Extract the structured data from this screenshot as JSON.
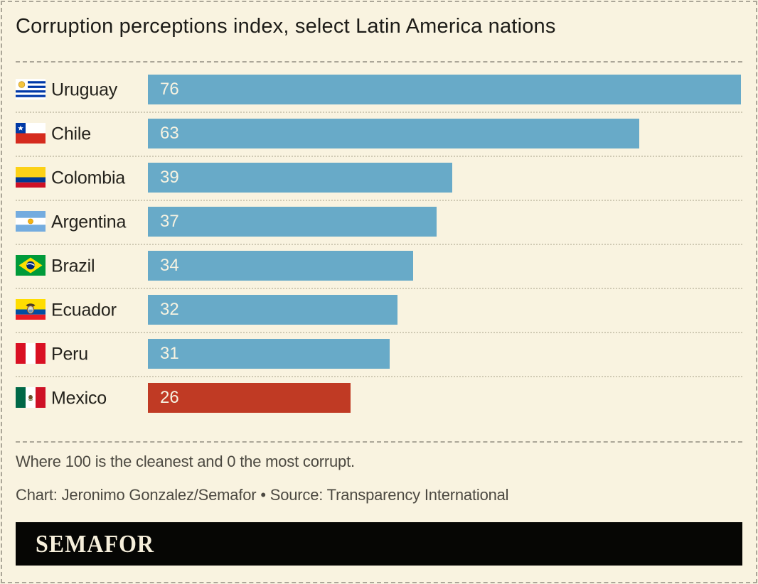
{
  "title": "Corruption perceptions index, select Latin America nations",
  "chart_data": {
    "type": "bar",
    "orientation": "horizontal",
    "title": "Corruption perceptions index, select Latin America nations",
    "categories": [
      "Uruguay",
      "Chile",
      "Colombia",
      "Argentina",
      "Brazil",
      "Ecuador",
      "Peru",
      "Mexico"
    ],
    "values": [
      76,
      63,
      39,
      37,
      34,
      32,
      31,
      26
    ],
    "flag_icons": [
      "flag-uruguay-icon",
      "flag-chile-icon",
      "flag-colombia-icon",
      "flag-argentina-icon",
      "flag-brazil-icon",
      "flag-ecuador-icon",
      "flag-peru-icon",
      "flag-mexico-icon"
    ],
    "xlim": [
      0,
      76
    ],
    "value_labels_shown": true,
    "grid": false,
    "legend": "none",
    "bar_color_default": "#68aac8",
    "bar_color_highlight": "#c03a24",
    "highlighted_category": "Mexico"
  },
  "footer": {
    "note": "Where 100 is the cleanest and 0 the most corrupt.",
    "credit": "Chart: Jeronimo Gonzalez/Semafor • Source: Transparency International"
  },
  "brand": {
    "logo_text": "SEMAFOR"
  },
  "colors": {
    "background": "#f9f3e0",
    "bar_blue": "#68aac8",
    "bar_red": "#c03a24",
    "title_text": "#1d1c18",
    "footer_text": "#4c4941",
    "logo_bar_bg": "#060604",
    "logo_text": "#f6efdb",
    "dashed_line": "#aba698",
    "dotted_separator": "#d0cab4"
  }
}
